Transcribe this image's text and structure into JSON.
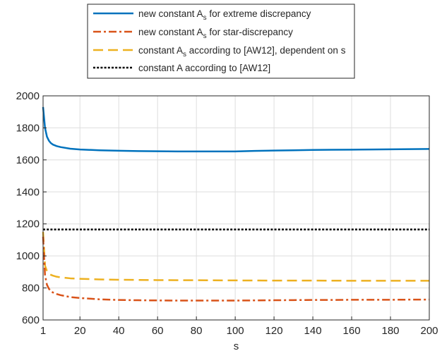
{
  "chart_data": {
    "type": "line",
    "xlabel": "s",
    "ylabel": "",
    "xlim": [
      1,
      200
    ],
    "ylim": [
      600,
      2000
    ],
    "x_ticks": [
      "1",
      "20",
      "40",
      "60",
      "80",
      "100",
      "120",
      "140",
      "160",
      "180",
      "200"
    ],
    "y_ticks": [
      "600",
      "800",
      "1000",
      "1200",
      "1400",
      "1600",
      "1800",
      "2000"
    ],
    "grid": true,
    "legend_position": "top-center",
    "series": [
      {
        "name": "new constant A_s for extreme discrepancy",
        "legend_main": "new constant A",
        "legend_sub": "s",
        "legend_rest": " for extreme discrepancy",
        "color": "#0072BD",
        "style": "solid",
        "x": [
          1,
          2,
          3,
          4,
          5,
          6,
          8,
          10,
          15,
          20,
          30,
          40,
          50,
          60,
          70,
          80,
          90,
          100,
          110,
          120,
          130,
          140,
          150,
          160,
          170,
          180,
          190,
          200
        ],
        "y": [
          1930,
          1800,
          1745,
          1720,
          1705,
          1696,
          1686,
          1680,
          1670,
          1665,
          1660,
          1657,
          1655,
          1654,
          1653,
          1653,
          1653,
          1653,
          1656,
          1658,
          1660,
          1662,
          1663,
          1664,
          1665,
          1666,
          1667,
          1668
        ]
      },
      {
        "name": "new constant A_s for star-discrepancy",
        "legend_main": "new constant A",
        "legend_sub": "s",
        "legend_rest": " for star-discrepancy",
        "color": "#D95319",
        "style": "dashdot",
        "x": [
          1,
          2,
          3,
          4,
          5,
          6,
          8,
          10,
          15,
          20,
          30,
          40,
          50,
          60,
          70,
          80,
          90,
          100,
          110,
          120,
          130,
          140,
          150,
          160,
          170,
          180,
          190,
          200
        ],
        "y": [
          1120,
          880,
          820,
          795,
          780,
          772,
          762,
          755,
          743,
          737,
          729,
          725,
          723,
          722,
          721,
          721,
          721,
          721,
          722,
          723,
          724,
          725,
          725,
          726,
          726,
          726,
          727,
          727
        ]
      },
      {
        "name": "constant A_s according to [AW12], dependent on s",
        "legend_main": "constant A",
        "legend_sub": "s",
        "legend_rest": " according to [AW12], dependent on s",
        "color": "#EDB120",
        "style": "dashed",
        "x": [
          1,
          2,
          3,
          4,
          5,
          6,
          8,
          10,
          15,
          20,
          30,
          40,
          60,
          80,
          100,
          120,
          140,
          160,
          180,
          200
        ],
        "y": [
          1150,
          940,
          905,
          890,
          882,
          877,
          870,
          866,
          860,
          857,
          853,
          851,
          849,
          848,
          847,
          846,
          846,
          845,
          845,
          845
        ]
      },
      {
        "name": "constant A according to [AW12]",
        "legend_main": "constant A according to [AW12]",
        "legend_sub": "",
        "legend_rest": "",
        "color": "#000000",
        "style": "dotted",
        "x": [
          1,
          200
        ],
        "y": [
          1165,
          1165
        ]
      }
    ]
  }
}
